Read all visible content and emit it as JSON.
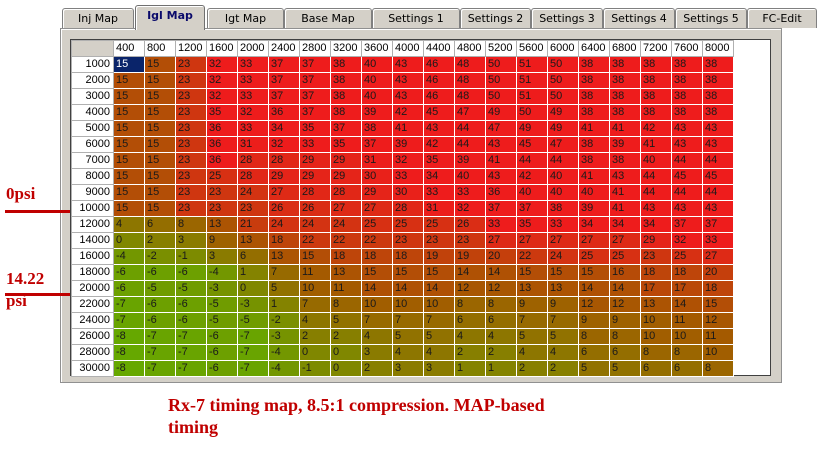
{
  "tabs": [
    {
      "label": "Inj Map",
      "active": false
    },
    {
      "label": "Igl Map",
      "active": true
    },
    {
      "label": "Igt Map",
      "active": false
    },
    {
      "label": "Base Map",
      "active": false
    },
    {
      "label": "Settings 1",
      "active": false
    },
    {
      "label": "Settings 2",
      "active": false
    },
    {
      "label": "Settings 3",
      "active": false
    },
    {
      "label": "Settings 4",
      "active": false
    },
    {
      "label": "Settings 5",
      "active": false
    },
    {
      "label": "FC-Edit",
      "active": false
    }
  ],
  "grid": {
    "rpm_columns": [
      "400",
      "800",
      "1200",
      "1600",
      "2000",
      "2400",
      "2800",
      "3200",
      "3600",
      "4000",
      "4400",
      "4800",
      "5200",
      "5600",
      "6000",
      "6400",
      "6800",
      "7200",
      "7600",
      "8000"
    ],
    "load_rows": [
      "1000",
      "2000",
      "3000",
      "4000",
      "5000",
      "6000",
      "7000",
      "8000",
      "9000",
      "10000",
      "12000",
      "14000",
      "16000",
      "18000",
      "20000",
      "22000",
      "24000",
      "26000",
      "28000",
      "30000"
    ],
    "values": [
      [
        15,
        15,
        23,
        32,
        33,
        37,
        37,
        38,
        40,
        43,
        46,
        48,
        50,
        51,
        50,
        38,
        38,
        38,
        38,
        38
      ],
      [
        15,
        15,
        23,
        32,
        33,
        37,
        37,
        38,
        40,
        43,
        46,
        48,
        50,
        51,
        50,
        38,
        38,
        38,
        38,
        38
      ],
      [
        15,
        15,
        23,
        32,
        33,
        37,
        37,
        38,
        40,
        43,
        46,
        48,
        50,
        51,
        50,
        38,
        38,
        38,
        38,
        38
      ],
      [
        15,
        15,
        23,
        35,
        32,
        36,
        37,
        38,
        39,
        42,
        45,
        47,
        49,
        50,
        49,
        38,
        38,
        38,
        38,
        38
      ],
      [
        15,
        15,
        23,
        36,
        33,
        34,
        35,
        37,
        38,
        41,
        43,
        44,
        47,
        49,
        49,
        41,
        41,
        42,
        43,
        43
      ],
      [
        15,
        15,
        23,
        36,
        31,
        32,
        33,
        35,
        37,
        39,
        42,
        44,
        43,
        45,
        47,
        38,
        39,
        41,
        43,
        43
      ],
      [
        15,
        15,
        23,
        36,
        28,
        28,
        29,
        29,
        31,
        32,
        35,
        39,
        41,
        44,
        44,
        38,
        38,
        40,
        44,
        44
      ],
      [
        15,
        15,
        23,
        25,
        28,
        29,
        29,
        29,
        30,
        33,
        34,
        40,
        43,
        42,
        40,
        41,
        43,
        44,
        45,
        45
      ],
      [
        15,
        15,
        23,
        23,
        24,
        27,
        28,
        28,
        29,
        30,
        33,
        33,
        36,
        40,
        40,
        40,
        41,
        44,
        44,
        44
      ],
      [
        15,
        15,
        23,
        23,
        23,
        26,
        26,
        27,
        27,
        28,
        31,
        32,
        37,
        37,
        38,
        39,
        41,
        43,
        43,
        43
      ],
      [
        4,
        6,
        8,
        13,
        21,
        24,
        24,
        24,
        25,
        25,
        25,
        26,
        33,
        35,
        33,
        34,
        34,
        34,
        37,
        37
      ],
      [
        0,
        2,
        3,
        9,
        13,
        18,
        22,
        22,
        22,
        23,
        23,
        23,
        27,
        27,
        27,
        27,
        27,
        29,
        32,
        33
      ],
      [
        -4,
        -2,
        -1,
        3,
        6,
        13,
        15,
        18,
        18,
        18,
        19,
        19,
        20,
        22,
        24,
        25,
        25,
        23,
        25,
        27
      ],
      [
        -6,
        -6,
        -6,
        -4,
        1,
        7,
        11,
        13,
        15,
        15,
        15,
        14,
        14,
        15,
        15,
        15,
        16,
        18,
        18,
        20
      ],
      [
        -6,
        -5,
        -5,
        -3,
        0,
        5,
        10,
        11,
        14,
        14,
        14,
        12,
        12,
        13,
        13,
        14,
        14,
        17,
        17,
        18
      ],
      [
        -7,
        -6,
        -6,
        -5,
        -3,
        1,
        7,
        8,
        10,
        10,
        10,
        8,
        8,
        9,
        9,
        12,
        12,
        13,
        14,
        15
      ],
      [
        -7,
        -6,
        -6,
        -5,
        -5,
        -2,
        4,
        5,
        7,
        7,
        7,
        6,
        6,
        7,
        7,
        9,
        9,
        10,
        11,
        12
      ],
      [
        -8,
        -7,
        -7,
        -6,
        -7,
        -3,
        2,
        2,
        4,
        5,
        5,
        4,
        4,
        5,
        5,
        8,
        8,
        10,
        10,
        11
      ],
      [
        -8,
        -7,
        -7,
        -6,
        -7,
        -4,
        0,
        0,
        3,
        4,
        4,
        2,
        2,
        4,
        4,
        6,
        6,
        8,
        8,
        10
      ],
      [
        -8,
        -7,
        -7,
        -6,
        -7,
        -4,
        -1,
        0,
        2,
        3,
        3,
        1,
        1,
        2,
        2,
        5,
        5,
        6,
        6,
        8
      ]
    ],
    "selected_cell": {
      "row": 0,
      "col": 0
    },
    "colors": {
      "high": "#ee1c1c",
      "low": "#66a800",
      "mid": "#a45a00"
    }
  },
  "annotations": {
    "zero_psi": "0psi",
    "boost_psi": "14.22\npsi",
    "color": "#c00000"
  },
  "caption": "Rx-7 timing map, 8.5:1 compression.  MAP-based timing"
}
